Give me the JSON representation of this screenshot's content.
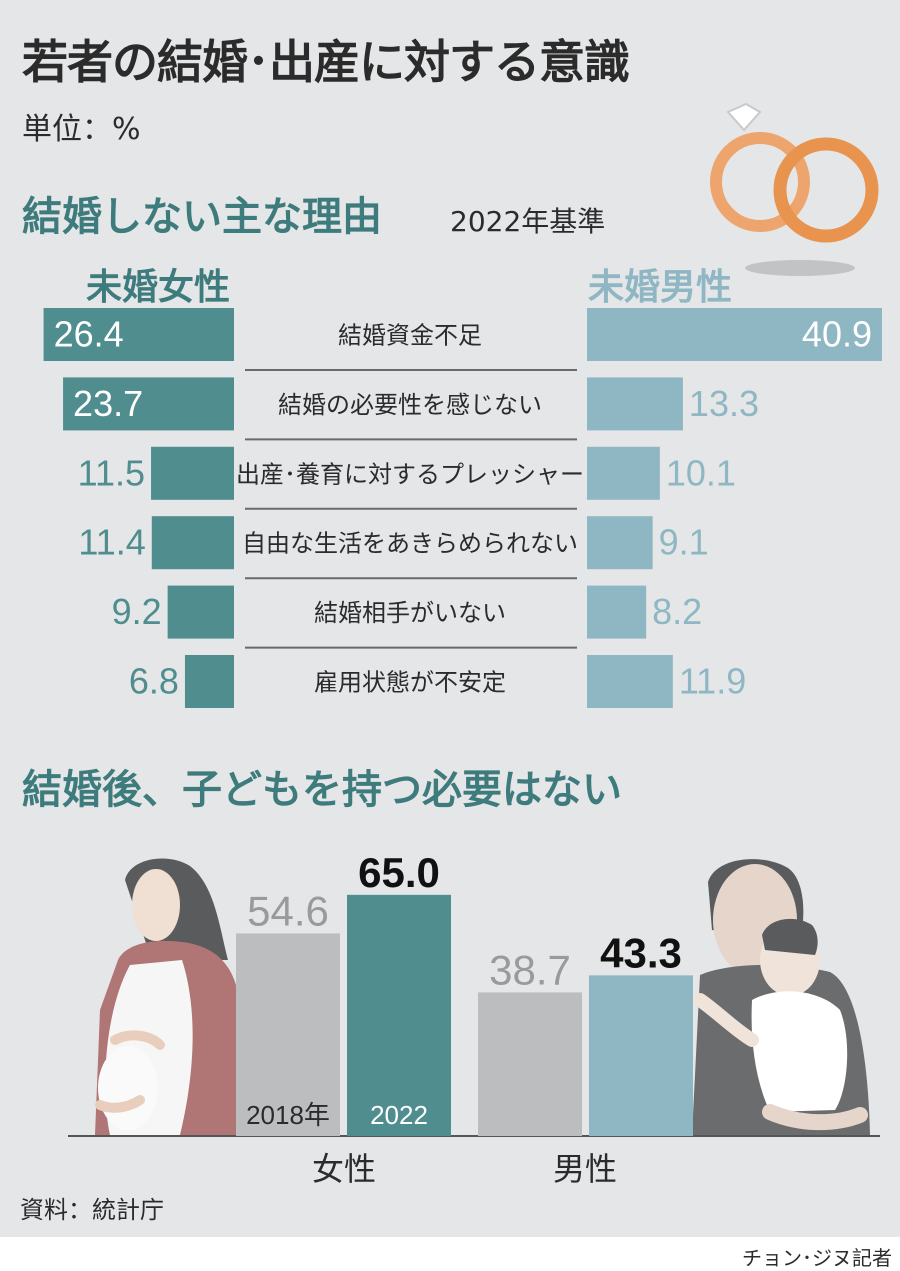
{
  "title": "若者の結婚･出産に対する意識",
  "unit": "単位：%",
  "source": "資料：統計庁",
  "credit": "チョン･ジヌ記者",
  "colors": {
    "female": "#4f8d8e",
    "male": "#8fb7c3",
    "gray": "#bcbdbf",
    "background": "#e5e6e8"
  },
  "chart_data": [
    {
      "type": "bar",
      "orientation": "horizontal",
      "title": "結婚しない主な理由",
      "subtitle": "2022年基準",
      "categories": [
        "結婚資金不足",
        "結婚の必要性を感じない",
        "出産･養育に対するプレッシャー",
        "自由な生活をあきらめられない",
        "結婚相手がいない",
        "雇用状態が不安定"
      ],
      "series": [
        {
          "name": "未婚女性",
          "values": [
            26.4,
            23.7,
            11.5,
            11.4,
            9.2,
            6.8
          ]
        },
        {
          "name": "未婚男性",
          "values": [
            40.9,
            13.3,
            10.1,
            9.1,
            8.2,
            11.9
          ]
        }
      ]
    },
    {
      "type": "bar",
      "title": "結婚後、子どもを持つ必要はない",
      "categories": [
        "女性",
        "男性"
      ],
      "series": [
        {
          "name": "2018年",
          "values": [
            54.6,
            38.7
          ]
        },
        {
          "name": "2022",
          "values": [
            65.0,
            43.3
          ]
        }
      ]
    }
  ]
}
